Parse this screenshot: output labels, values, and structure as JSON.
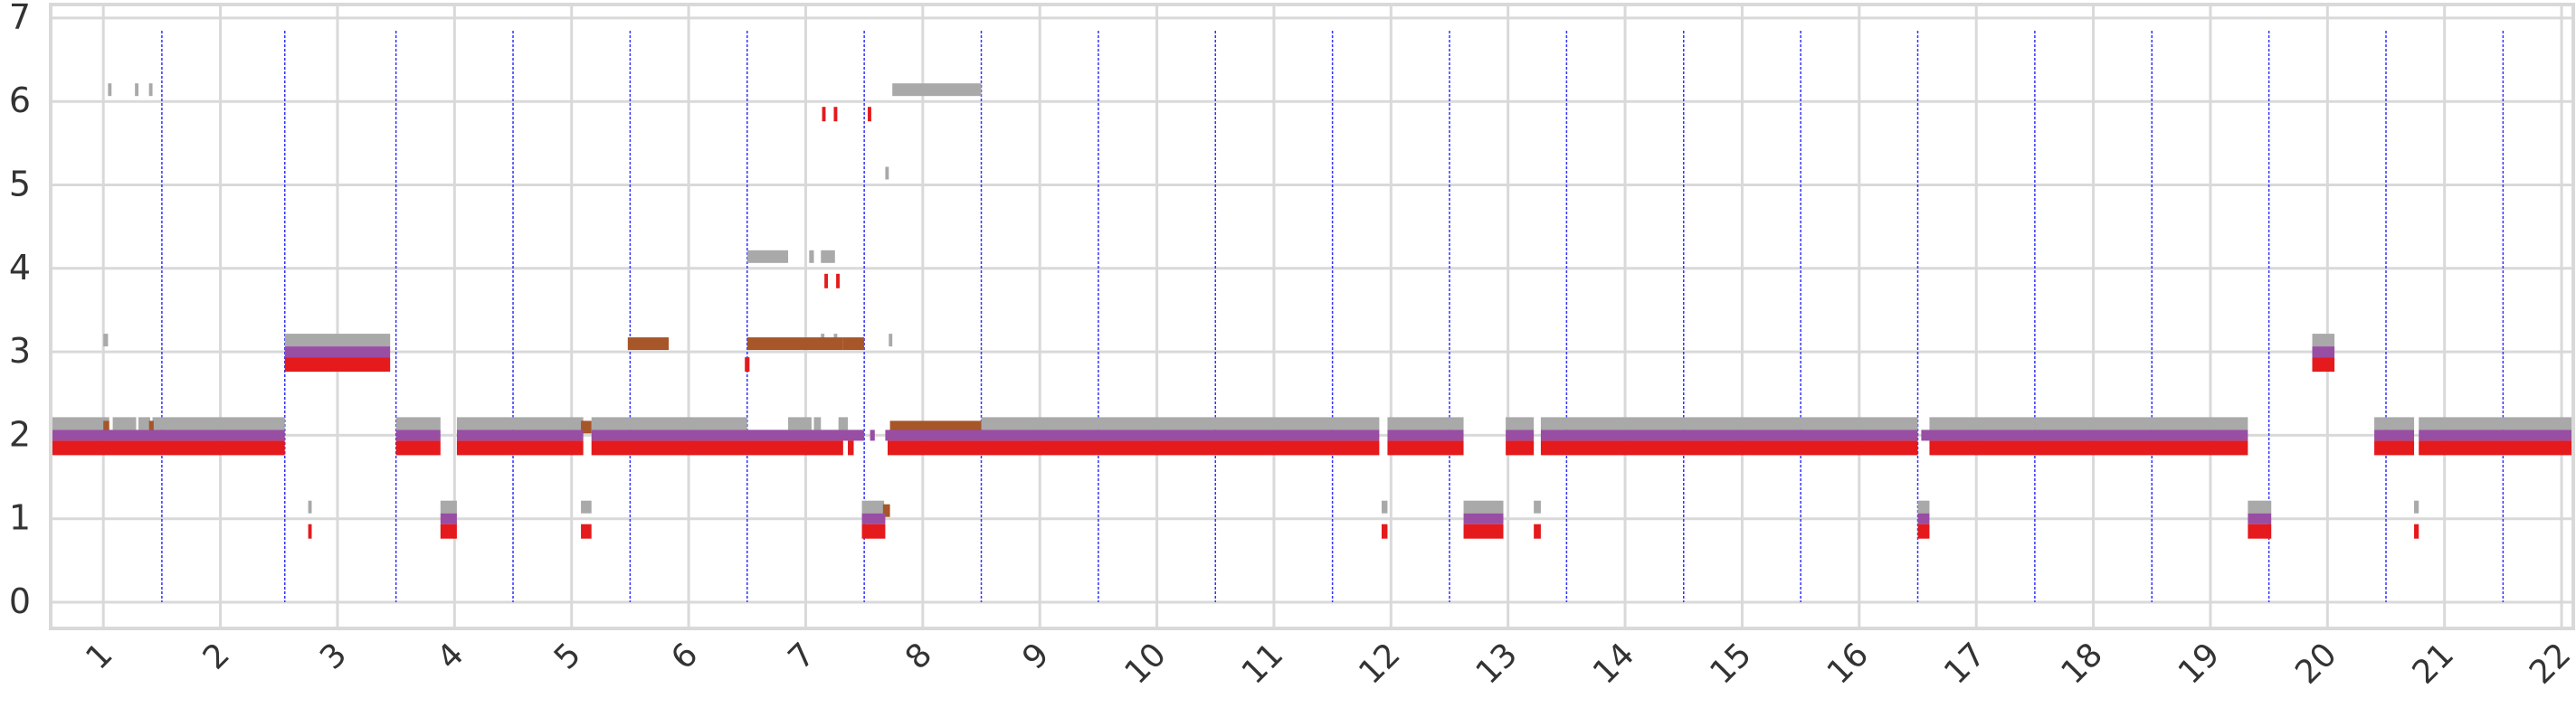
{
  "chart_data": {
    "type": "bar",
    "title": "",
    "xlabel": "",
    "ylabel": "",
    "ylim": [
      0,
      7
    ],
    "y_ticks": [
      "0",
      "1",
      "2",
      "3",
      "4",
      "5",
      "6",
      "7"
    ],
    "grid": true,
    "x_categories": [
      "1",
      "2",
      "3",
      "4",
      "5",
      "6",
      "7",
      "8",
      "9",
      "10",
      "11",
      "12",
      "13",
      "14",
      "15",
      "16",
      "17",
      "18",
      "19",
      "20",
      "21",
      "22"
    ],
    "x_tick_positions": [
      1.0,
      2.0,
      3.0,
      4.0,
      5.0,
      6.0,
      7.0,
      8.0,
      9.0,
      10.0,
      11.0,
      12.0,
      13.0,
      14.0,
      15.0,
      16.0,
      17.0,
      18.0,
      19.0,
      20.0,
      21.0,
      22.0
    ],
    "x_range": [
      0.55,
      22.1
    ],
    "boundaries": [
      1.5,
      2.55,
      3.5,
      4.5,
      5.5,
      6.5,
      7.5,
      8.5,
      9.5,
      10.5,
      11.5,
      12.5,
      13.5,
      14.5,
      15.5,
      16.5,
      17.5,
      18.5,
      19.5,
      20.5,
      21.5
    ],
    "colors": {
      "red": "#e41a1c",
      "purple": "#984ea3",
      "brown": "#a65628",
      "gray": "#a9a9a9",
      "grid": "#d9d9d9",
      "boundary": "#3333ff"
    },
    "segments": [
      {
        "series": "red",
        "level": 2,
        "x0": 0.55,
        "x1": 2.55
      },
      {
        "series": "purple",
        "level": 2,
        "x0": 0.55,
        "x1": 2.55
      },
      {
        "series": "gray",
        "level": 2,
        "x0": 0.55,
        "x1": 1.05
      },
      {
        "series": "gray",
        "level": 2,
        "x0": 1.08,
        "x1": 1.28
      },
      {
        "series": "gray",
        "level": 2,
        "x0": 1.3,
        "x1": 1.4
      },
      {
        "series": "gray",
        "level": 2,
        "x0": 1.42,
        "x1": 2.55
      },
      {
        "series": "brown",
        "level": 2,
        "x0": 1.0,
        "x1": 1.05
      },
      {
        "series": "brown",
        "level": 2,
        "x0": 1.39,
        "x1": 1.43
      },
      {
        "series": "gray",
        "level": 3,
        "x0": 1.0,
        "x1": 1.04
      },
      {
        "series": "gray",
        "level": 6,
        "x0": 1.04,
        "x1": 1.07
      },
      {
        "series": "gray",
        "level": 6,
        "x0": 1.27,
        "x1": 1.3
      },
      {
        "series": "gray",
        "level": 6,
        "x0": 1.39,
        "x1": 1.42
      },
      {
        "series": "red",
        "level": 3,
        "x0": 2.55,
        "x1": 3.45
      },
      {
        "series": "purple",
        "level": 3,
        "x0": 2.55,
        "x1": 3.45
      },
      {
        "series": "gray",
        "level": 3,
        "x0": 2.55,
        "x1": 3.45
      },
      {
        "series": "red",
        "level": 1,
        "x0": 2.75,
        "x1": 2.78
      },
      {
        "series": "gray",
        "level": 1,
        "x0": 2.75,
        "x1": 2.78
      },
      {
        "series": "red",
        "level": 2,
        "x0": 3.5,
        "x1": 3.88
      },
      {
        "series": "purple",
        "level": 2,
        "x0": 3.5,
        "x1": 3.88
      },
      {
        "series": "gray",
        "level": 2,
        "x0": 3.5,
        "x1": 3.88
      },
      {
        "series": "red",
        "level": 1,
        "x0": 3.88,
        "x1": 4.02
      },
      {
        "series": "purple",
        "level": 1,
        "x0": 3.88,
        "x1": 4.02
      },
      {
        "series": "gray",
        "level": 1,
        "x0": 3.88,
        "x1": 4.02
      },
      {
        "series": "red",
        "level": 2,
        "x0": 4.02,
        "x1": 5.1
      },
      {
        "series": "purple",
        "level": 2,
        "x0": 4.02,
        "x1": 5.1
      },
      {
        "series": "gray",
        "level": 2,
        "x0": 4.02,
        "x1": 5.1
      },
      {
        "series": "red",
        "level": 1,
        "x0": 5.08,
        "x1": 5.17
      },
      {
        "series": "gray",
        "level": 1,
        "x0": 5.08,
        "x1": 5.17
      },
      {
        "series": "brown",
        "level": 2,
        "x0": 5.08,
        "x1": 5.17
      },
      {
        "series": "red",
        "level": 2,
        "x0": 5.17,
        "x1": 7.32
      },
      {
        "series": "purple",
        "level": 2,
        "x0": 5.17,
        "x1": 7.5
      },
      {
        "series": "gray",
        "level": 2,
        "x0": 5.17,
        "x1": 6.5
      },
      {
        "series": "brown",
        "level": 3,
        "x0": 5.48,
        "x1": 5.83
      },
      {
        "series": "red",
        "level": 3,
        "x0": 6.48,
        "x1": 6.52
      },
      {
        "series": "brown",
        "level": 3,
        "x0": 6.5,
        "x1": 7.32
      },
      {
        "series": "gray",
        "level": 4,
        "x0": 6.5,
        "x1": 6.85
      },
      {
        "series": "gray",
        "level": 4,
        "x0": 7.03,
        "x1": 7.07
      },
      {
        "series": "gray",
        "level": 4,
        "x0": 7.13,
        "x1": 7.25
      },
      {
        "series": "red",
        "level": 4,
        "x0": 7.16,
        "x1": 7.19
      },
      {
        "series": "red",
        "level": 4,
        "x0": 7.26,
        "x1": 7.29
      },
      {
        "series": "gray",
        "level": 2,
        "x0": 6.85,
        "x1": 7.05
      },
      {
        "series": "gray",
        "level": 2,
        "x0": 7.07,
        "x1": 7.13
      },
      {
        "series": "gray",
        "level": 2,
        "x0": 7.28,
        "x1": 7.36
      },
      {
        "series": "red",
        "level": 6,
        "x0": 7.14,
        "x1": 7.17
      },
      {
        "series": "red",
        "level": 6,
        "x0": 7.24,
        "x1": 7.27
      },
      {
        "series": "red",
        "level": 6,
        "x0": 7.53,
        "x1": 7.56
      },
      {
        "series": "gray",
        "level": 3,
        "x0": 7.13,
        "x1": 7.16
      },
      {
        "series": "gray",
        "level": 3,
        "x0": 7.24,
        "x1": 7.27
      },
      {
        "series": "brown",
        "level": 3,
        "x0": 7.32,
        "x1": 7.5
      },
      {
        "series": "red",
        "level": 2,
        "x0": 7.36,
        "x1": 7.41
      },
      {
        "series": "red",
        "level": 1,
        "x0": 7.48,
        "x1": 7.68
      },
      {
        "series": "purple",
        "level": 1,
        "x0": 7.48,
        "x1": 7.68
      },
      {
        "series": "gray",
        "level": 1,
        "x0": 7.48,
        "x1": 7.67
      },
      {
        "series": "brown",
        "level": 1,
        "x0": 7.66,
        "x1": 7.72
      },
      {
        "series": "purple",
        "level": 2,
        "x0": 7.55,
        "x1": 7.59
      },
      {
        "series": "gray",
        "level": 5,
        "x0": 7.68,
        "x1": 7.71
      },
      {
        "series": "red",
        "level": 2,
        "x0": 7.7,
        "x1": 11.9
      },
      {
        "series": "purple",
        "level": 2,
        "x0": 7.68,
        "x1": 11.9
      },
      {
        "series": "gray",
        "level": 2,
        "x0": 8.5,
        "x1": 11.9
      },
      {
        "series": "brown",
        "level": 2,
        "x0": 7.72,
        "x1": 8.5
      },
      {
        "series": "gray",
        "level": 3,
        "x0": 7.71,
        "x1": 7.74
      },
      {
        "series": "gray",
        "level": 6,
        "x0": 7.74,
        "x1": 8.5
      },
      {
        "series": "red",
        "level": 1,
        "x0": 11.92,
        "x1": 11.97
      },
      {
        "series": "gray",
        "level": 1,
        "x0": 11.92,
        "x1": 11.97
      },
      {
        "series": "red",
        "level": 2,
        "x0": 11.97,
        "x1": 12.62
      },
      {
        "series": "purple",
        "level": 2,
        "x0": 11.97,
        "x1": 12.62
      },
      {
        "series": "gray",
        "level": 2,
        "x0": 11.97,
        "x1": 12.62
      },
      {
        "series": "red",
        "level": 1,
        "x0": 12.62,
        "x1": 12.96
      },
      {
        "series": "purple",
        "level": 1,
        "x0": 12.62,
        "x1": 12.96
      },
      {
        "series": "gray",
        "level": 1,
        "x0": 12.62,
        "x1": 12.96
      },
      {
        "series": "red",
        "level": 2,
        "x0": 12.98,
        "x1": 13.22
      },
      {
        "series": "purple",
        "level": 2,
        "x0": 12.98,
        "x1": 13.22
      },
      {
        "series": "gray",
        "level": 2,
        "x0": 12.98,
        "x1": 13.22
      },
      {
        "series": "red",
        "level": 1,
        "x0": 13.22,
        "x1": 13.28
      },
      {
        "series": "gray",
        "level": 1,
        "x0": 13.22,
        "x1": 13.28
      },
      {
        "series": "red",
        "level": 2,
        "x0": 13.28,
        "x1": 16.5
      },
      {
        "series": "purple",
        "level": 2,
        "x0": 13.28,
        "x1": 16.5
      },
      {
        "series": "gray",
        "level": 2,
        "x0": 13.28,
        "x1": 16.5
      },
      {
        "series": "red",
        "level": 1,
        "x0": 16.5,
        "x1": 16.6
      },
      {
        "series": "purple",
        "level": 1,
        "x0": 16.5,
        "x1": 16.6
      },
      {
        "series": "gray",
        "level": 1,
        "x0": 16.5,
        "x1": 16.6
      },
      {
        "series": "red",
        "level": 2,
        "x0": 16.6,
        "x1": 19.32
      },
      {
        "series": "purple",
        "level": 2,
        "x0": 16.53,
        "x1": 19.32
      },
      {
        "series": "gray",
        "level": 2,
        "x0": 16.6,
        "x1": 19.32
      },
      {
        "series": "red",
        "level": 1,
        "x0": 19.32,
        "x1": 19.52
      },
      {
        "series": "purple",
        "level": 1,
        "x0": 19.32,
        "x1": 19.52
      },
      {
        "series": "gray",
        "level": 1,
        "x0": 19.32,
        "x1": 19.52
      },
      {
        "series": "red",
        "level": 3,
        "x0": 19.87,
        "x1": 20.06
      },
      {
        "series": "purple",
        "level": 3,
        "x0": 19.87,
        "x1": 20.06
      },
      {
        "series": "gray",
        "level": 3,
        "x0": 19.87,
        "x1": 20.06
      },
      {
        "series": "red",
        "level": 2,
        "x0": 20.4,
        "x1": 20.74
      },
      {
        "series": "purple",
        "level": 2,
        "x0": 20.4,
        "x1": 20.74
      },
      {
        "series": "gray",
        "level": 2,
        "x0": 20.4,
        "x1": 20.74
      },
      {
        "series": "red",
        "level": 1,
        "x0": 20.74,
        "x1": 20.78
      },
      {
        "series": "gray",
        "level": 1,
        "x0": 20.74,
        "x1": 20.78
      },
      {
        "series": "red",
        "level": 2,
        "x0": 20.78,
        "x1": 22.1
      },
      {
        "series": "purple",
        "level": 2,
        "x0": 20.78,
        "x1": 22.1
      },
      {
        "series": "gray",
        "level": 2,
        "x0": 20.78,
        "x1": 22.1
      }
    ]
  }
}
